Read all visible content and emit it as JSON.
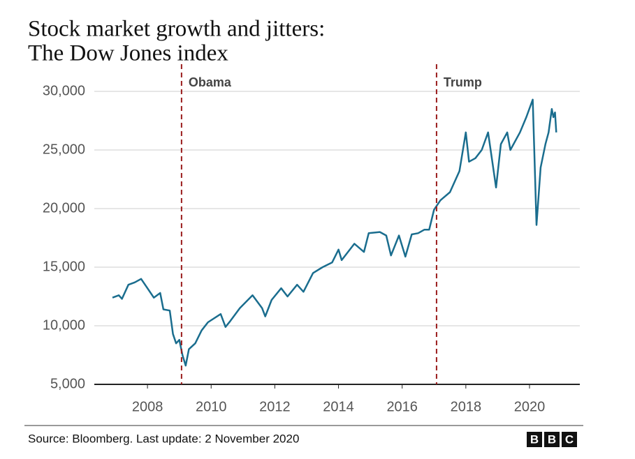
{
  "chart_data": {
    "type": "line",
    "title": [
      "Stock market growth and jitters:",
      "The Dow Jones index"
    ],
    "source": "Source: Bloomberg. Last update: 2 November 2020",
    "logo": [
      "B",
      "B",
      "C"
    ],
    "xlim": [
      2006.33,
      2021.58
    ],
    "xticks": [
      2008,
      2010,
      2012,
      2014,
      2016,
      2018,
      2020
    ],
    "ylim": [
      5000,
      30000
    ],
    "yticks": [
      {
        "value": 5000,
        "label": "5,000"
      },
      {
        "value": 10000,
        "label": "10,000"
      },
      {
        "value": 15000,
        "label": "15,000"
      },
      {
        "value": 20000,
        "label": "20,000"
      },
      {
        "value": 25000,
        "label": "25,000"
      },
      {
        "value": 30000,
        "label": "30,000"
      }
    ],
    "grid": true,
    "annotations": [
      {
        "label": "Obama",
        "x": 2009.07,
        "color": "#9a1c1c"
      },
      {
        "label": "Trump",
        "x": 2017.08,
        "color": "#9a1c1c"
      }
    ],
    "series": [
      {
        "name": "Dow Jones",
        "color": "#1a6d8e",
        "x": [
          2006.9,
          2007.1,
          2007.2,
          2007.4,
          2007.6,
          2007.8,
          2008.0,
          2008.2,
          2008.4,
          2008.5,
          2008.7,
          2008.8,
          2008.9,
          2009.0,
          2009.1,
          2009.2,
          2009.3,
          2009.5,
          2009.7,
          2009.9,
          2010.3,
          2010.45,
          2010.6,
          2010.9,
          2011.3,
          2011.6,
          2011.7,
          2011.9,
          2012.2,
          2012.4,
          2012.7,
          2012.9,
          2013.2,
          2013.5,
          2013.8,
          2014.0,
          2014.1,
          2014.5,
          2014.8,
          2014.95,
          2015.3,
          2015.5,
          2015.65,
          2015.9,
          2016.1,
          2016.3,
          2016.5,
          2016.7,
          2016.85,
          2017.0,
          2017.2,
          2017.5,
          2017.8,
          2018.0,
          2018.1,
          2018.3,
          2018.5,
          2018.7,
          2018.95,
          2019.1,
          2019.3,
          2019.4,
          2019.7,
          2019.9,
          2020.1,
          2020.15,
          2020.22,
          2020.35,
          2020.5,
          2020.6,
          2020.7,
          2020.75,
          2020.8,
          2020.84
        ],
        "values": [
          12400,
          12600,
          12300,
          13500,
          13700,
          14000,
          13200,
          12400,
          12800,
          11400,
          11300,
          9300,
          8500,
          8800,
          7500,
          6600,
          8000,
          8500,
          9600,
          10300,
          11000,
          9900,
          10400,
          11500,
          12600,
          11500,
          10800,
          12200,
          13200,
          12500,
          13500,
          12900,
          14500,
          15000,
          15400,
          16500,
          15600,
          17000,
          16300,
          17900,
          18000,
          17700,
          16000,
          17700,
          15900,
          17800,
          17900,
          18200,
          18200,
          19900,
          20700,
          21400,
          23200,
          26500,
          24000,
          24300,
          25000,
          26500,
          21800,
          25500,
          26500,
          25000,
          26500,
          27800,
          29300,
          25000,
          18600,
          23500,
          25500,
          26500,
          28500,
          27800,
          28200,
          26500
        ]
      }
    ]
  }
}
